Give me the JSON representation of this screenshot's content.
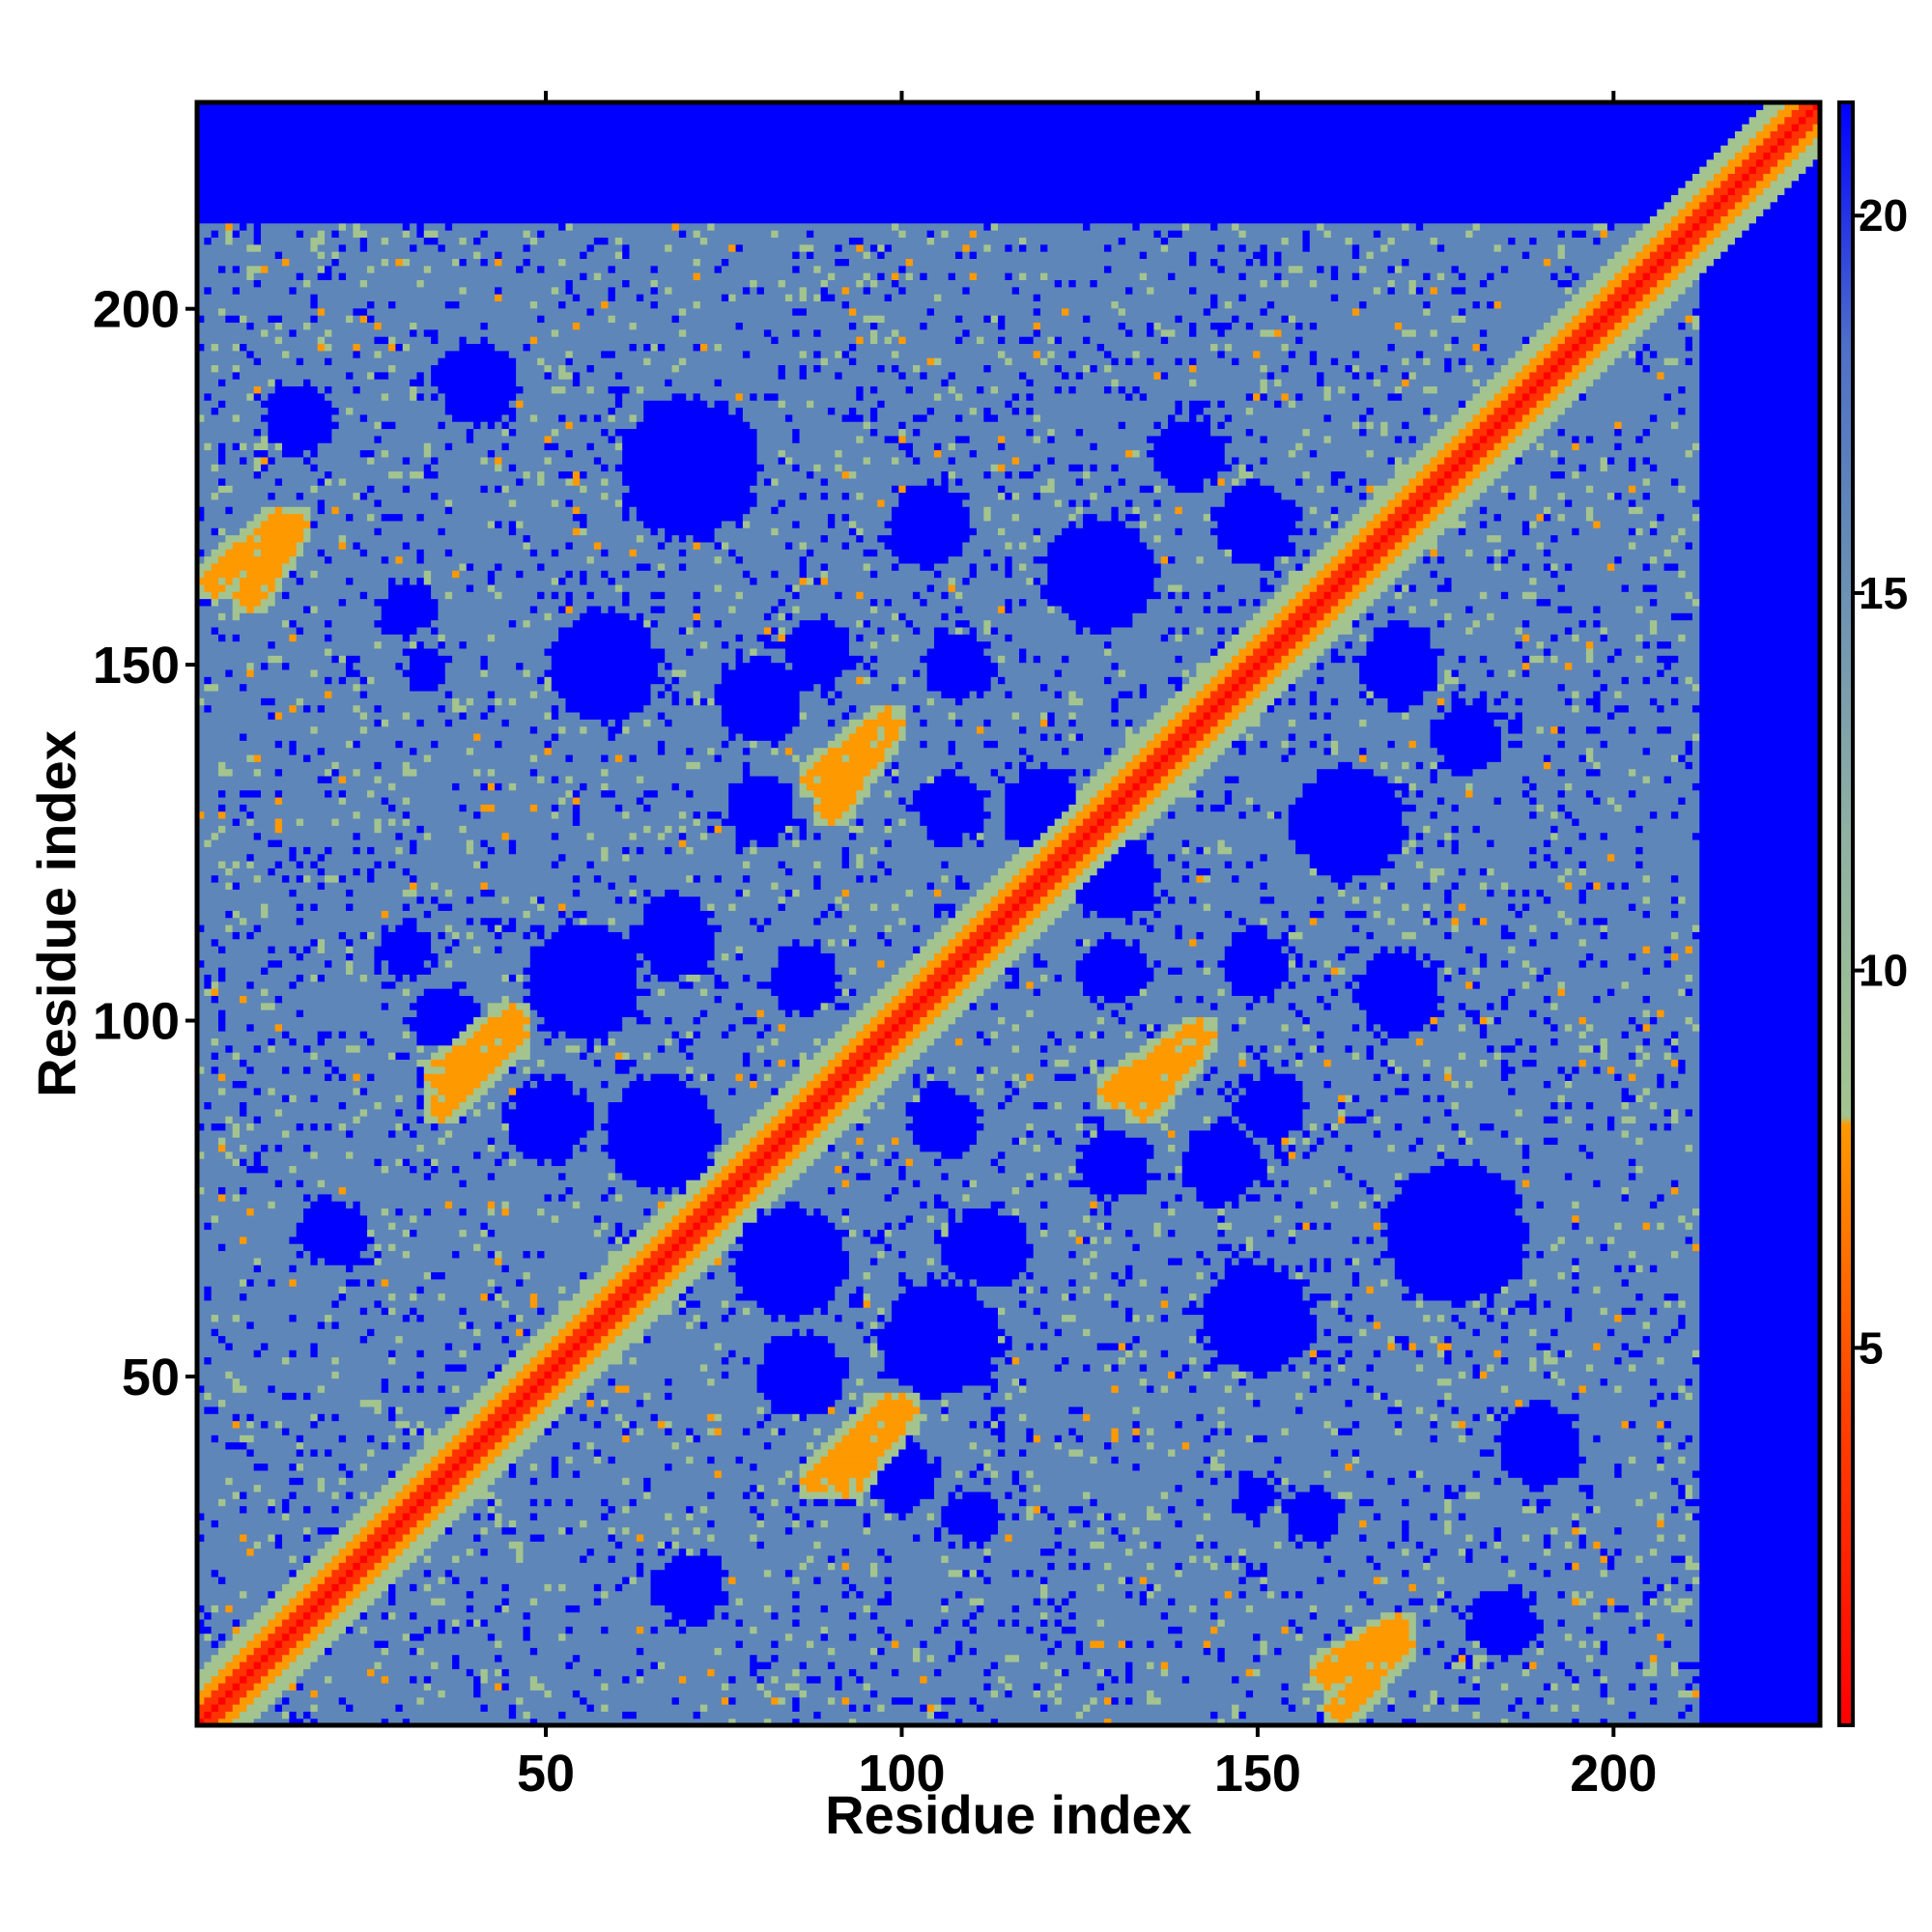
{
  "chart_data": {
    "type": "heatmap",
    "title": "",
    "xlabel": "Residue index",
    "ylabel": "Residue index",
    "n_residues": 229,
    "xlim": [
      1,
      229
    ],
    "ylim": [
      1,
      229
    ],
    "x_ticks": [
      50,
      100,
      150,
      200
    ],
    "y_ticks": [
      50,
      100,
      150,
      200
    ],
    "colorbar": {
      "ticks": [
        5,
        10,
        15,
        20
      ],
      "range": [
        0,
        21.5
      ],
      "colors": [
        {
          "stop": 0.0,
          "color": "#ff0000"
        },
        {
          "stop": 4.5,
          "color": "#ff4400"
        },
        {
          "stop": 8.0,
          "color": "#ff9900"
        },
        {
          "stop": 8.5,
          "color": "#a3c48f"
        },
        {
          "stop": 12.0,
          "color": "#8fb0a3"
        },
        {
          "stop": 16.0,
          "color": "#5f86b8"
        },
        {
          "stop": 21.5,
          "color": "#0000ff"
        }
      ]
    },
    "background_value": 21,
    "description_of_values": "Symmetric residue-residue distance map; diagonal = 0 (red), near contacts orange, intermediate grey-blue, distant blue",
    "diagonal_value": 0,
    "strands": [
      {
        "a": [
          12,
          20
        ],
        "b": [
          12,
          20
        ]
      },
      {
        "a": [
          35,
          45
        ],
        "b": [
          88,
          98
        ]
      },
      {
        "a": [
          92,
          100
        ],
        "b": [
          35,
          45
        ]
      },
      {
        "a": [
          8,
          14
        ],
        "b": [
          160,
          170
        ]
      },
      {
        "a": [
          90,
          98
        ],
        "b": [
          130,
          142
        ]
      },
      {
        "a": [
          134,
          142
        ],
        "b": [
          88,
          98
        ]
      },
      {
        "a": [
          162,
          170
        ],
        "b": [
          3,
          12
        ]
      },
      {
        "a": [
          195,
          210
        ],
        "b": [
          195,
          210
        ]
      }
    ],
    "blue_holes": [
      {
        "x": 36,
        "y": 100,
        "r": 5
      },
      {
        "x": 55,
        "y": 107,
        "r": 7
      },
      {
        "x": 66,
        "y": 84,
        "r": 8
      },
      {
        "x": 50,
        "y": 86,
        "r": 6
      },
      {
        "x": 86,
        "y": 106,
        "r": 5
      },
      {
        "x": 105,
        "y": 55,
        "r": 8
      },
      {
        "x": 112,
        "y": 68,
        "r": 6
      },
      {
        "x": 130,
        "y": 107,
        "r": 5
      },
      {
        "x": 120,
        "y": 130,
        "r": 6
      },
      {
        "x": 108,
        "y": 150,
        "r": 5
      },
      {
        "x": 88,
        "y": 152,
        "r": 5
      },
      {
        "x": 60,
        "y": 150,
        "r": 5
      },
      {
        "x": 33,
        "y": 150,
        "r": 3
      },
      {
        "x": 163,
        "y": 128,
        "r": 8
      },
      {
        "x": 170,
        "y": 104,
        "r": 6
      },
      {
        "x": 178,
        "y": 70,
        "r": 10
      },
      {
        "x": 150,
        "y": 58,
        "r": 8
      },
      {
        "x": 158,
        "y": 30,
        "r": 4
      },
      {
        "x": 110,
        "y": 30,
        "r": 4
      },
      {
        "x": 70,
        "y": 20,
        "r": 5
      },
      {
        "x": 190,
        "y": 40,
        "r": 6
      },
      {
        "x": 145,
        "y": 80,
        "r": 6
      },
      {
        "x": 80,
        "y": 130,
        "r": 5
      },
      {
        "x": 40,
        "y": 190,
        "r": 5
      },
      {
        "x": 15,
        "y": 185,
        "r": 5
      },
      {
        "x": 150,
        "y": 170,
        "r": 6
      },
      {
        "x": 180,
        "y": 140,
        "r": 5
      }
    ]
  }
}
